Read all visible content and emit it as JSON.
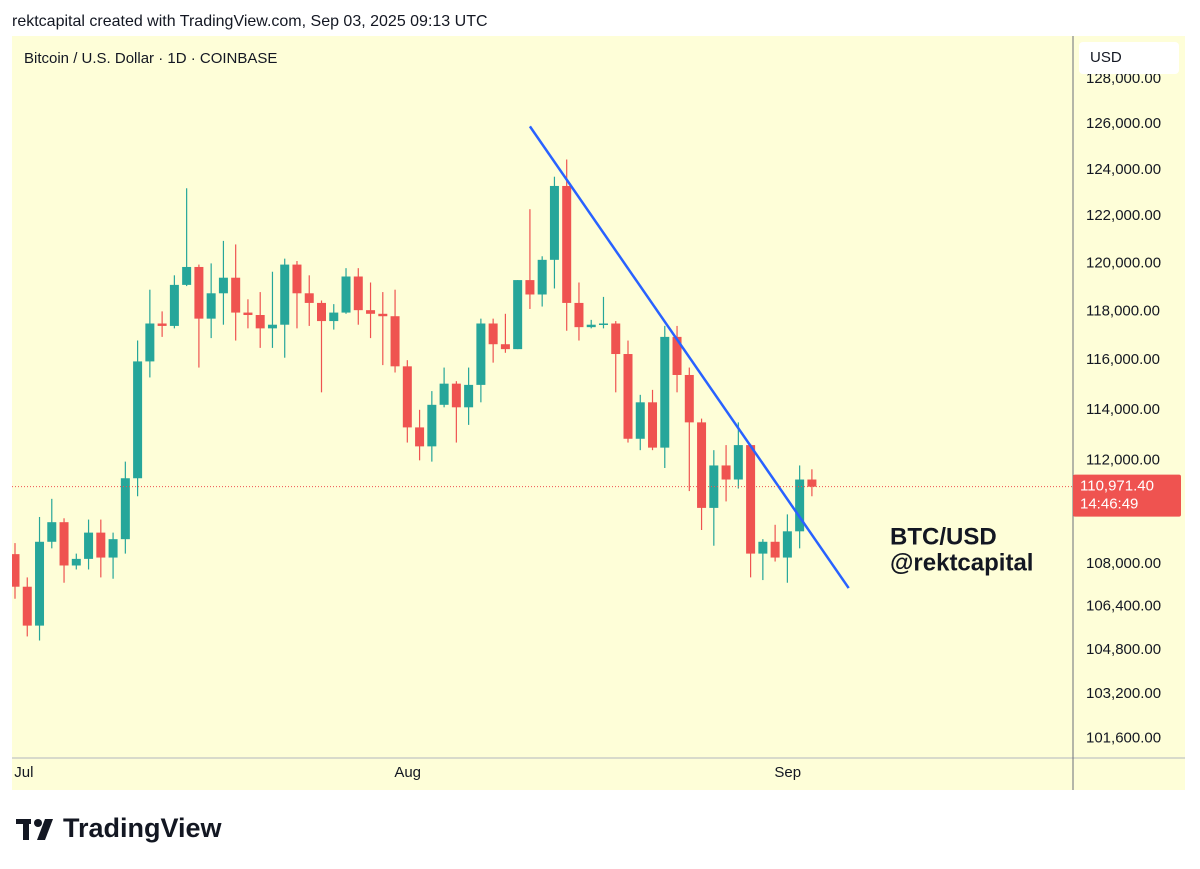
{
  "header": "rektcapital created with TradingView.com, Sep 03, 2025 09:13 UTC",
  "footer": {
    "brand": "TradingView"
  },
  "chart_data": {
    "type": "candlestick",
    "title": "Bitcoin / U.S. Dollar · 1D · COINBASE",
    "currency": "USD",
    "annotations": [
      "BTC/USD",
      "@rektcapital"
    ],
    "up_color": "#26a69a",
    "down_color": "#ef5350",
    "background": "#fefed8",
    "log": true,
    "grid": false,
    "categories": [
      null,
      "Jul",
      null,
      null,
      null,
      null,
      null,
      null,
      null,
      null,
      null,
      null,
      null,
      null,
      null,
      null,
      null,
      null,
      null,
      null,
      null,
      null,
      null,
      null,
      null,
      null,
      null,
      null,
      null,
      null,
      null,
      null,
      "Aug",
      null,
      null,
      null,
      null,
      null,
      null,
      null,
      null,
      null,
      null,
      null,
      null,
      null,
      null,
      null,
      null,
      null,
      null,
      null,
      null,
      null,
      null,
      null,
      null,
      null,
      null,
      null,
      null,
      null,
      null,
      "Sep",
      null,
      null
    ],
    "open": [
      108380,
      107150,
      105700,
      108850,
      109600,
      107950,
      108200,
      109200,
      108250,
      108950,
      111300,
      115950,
      117500,
      117400,
      119100,
      119850,
      117700,
      118750,
      119400,
      117950,
      117850,
      117300,
      117450,
      119950,
      118750,
      118350,
      117600,
      117950,
      119450,
      118050,
      117900,
      117800,
      115750,
      113300,
      112550,
      114200,
      115050,
      114100,
      115000,
      117500,
      116650,
      116450,
      119300,
      118700,
      120150,
      123300,
      118350,
      117350,
      117450,
      117500,
      116250,
      112850,
      114300,
      112500,
      116950,
      115400,
      113500,
      110150,
      111800,
      111250,
      112600,
      108400,
      108850,
      108250,
      109250,
      111250
    ],
    "high": [
      108800,
      107500,
      109800,
      110500,
      109750,
      108400,
      109700,
      109700,
      109200,
      111950,
      116800,
      118900,
      118000,
      119500,
      123200,
      119950,
      120000,
      120950,
      120800,
      118500,
      118800,
      119650,
      120200,
      120100,
      119500,
      118450,
      118300,
      119800,
      119800,
      119200,
      118800,
      118900,
      116000,
      114000,
      114750,
      115700,
      115150,
      115700,
      117700,
      117700,
      117900,
      119300,
      122300,
      120300,
      123700,
      124450,
      119200,
      117650,
      118600,
      117600,
      116800,
      114600,
      114800,
      117400,
      117400,
      115700,
      113650,
      112400,
      112600,
      113500,
      112650,
      108950,
      109500,
      109900,
      111800,
      111650
    ],
    "low": [
      106700,
      105300,
      105150,
      108600,
      107300,
      107800,
      107800,
      107500,
      107450,
      108400,
      110600,
      115300,
      116950,
      117300,
      119050,
      115700,
      116900,
      117450,
      116800,
      117300,
      116500,
      116500,
      116100,
      117300,
      117400,
      114700,
      117250,
      117900,
      117450,
      116900,
      115800,
      115500,
      112700,
      112000,
      111950,
      114100,
      112700,
      113400,
      114300,
      115900,
      116300,
      116450,
      118100,
      118200,
      118950,
      117200,
      116800,
      117300,
      117300,
      114700,
      112700,
      112400,
      112400,
      111700,
      114700,
      110800,
      109300,
      108700,
      110400,
      110900,
      107500,
      107400,
      108100,
      107300,
      108600,
      110600
    ],
    "close": [
      107150,
      105700,
      108850,
      109600,
      107950,
      108200,
      109200,
      108250,
      108950,
      111300,
      115950,
      117500,
      117400,
      119100,
      119850,
      117700,
      118750,
      119400,
      117950,
      117850,
      117300,
      117450,
      119950,
      118750,
      118350,
      117600,
      117950,
      119450,
      118050,
      117900,
      117800,
      115750,
      113300,
      112550,
      114200,
      115050,
      114100,
      115000,
      117500,
      116650,
      116450,
      119300,
      118700,
      120150,
      123300,
      118350,
      117350,
      117450,
      117500,
      116250,
      112850,
      114300,
      112500,
      116950,
      115400,
      113500,
      110150,
      111800,
      111250,
      112600,
      108400,
      108850,
      108250,
      109250,
      111250,
      110971.4
    ],
    "ylim": [
      100910,
      129950
    ],
    "yticks": [
      {
        "value": 101600,
        "label": "101,600.00"
      },
      {
        "value": 103200,
        "label": "103,200.00"
      },
      {
        "value": 104800,
        "label": "104,800.00"
      },
      {
        "value": 106400,
        "label": "106,400.00"
      },
      {
        "value": 108000,
        "label": "108,000.00"
      },
      {
        "value": 112000,
        "label": "112,000.00"
      },
      {
        "value": 114000,
        "label": "114,000.00"
      },
      {
        "value": 116000,
        "label": "116,000.00"
      },
      {
        "value": 118000,
        "label": "118,000.00"
      },
      {
        "value": 120000,
        "label": "120,000.00"
      },
      {
        "value": 122000,
        "label": "122,000.00"
      },
      {
        "value": 124000,
        "label": "124,000.00"
      },
      {
        "value": 126000,
        "label": "126,000.00"
      },
      {
        "value": 128000,
        "label": "128,000.00"
      }
    ],
    "last_price": {
      "value": 110971.4,
      "label": "110,971.40",
      "countdown": "14:46:49",
      "color": "#ef5350"
    },
    "trendline": {
      "color": "#2962ff",
      "x": [
        42,
        68
      ],
      "values": [
        125900,
        107100
      ]
    }
  }
}
